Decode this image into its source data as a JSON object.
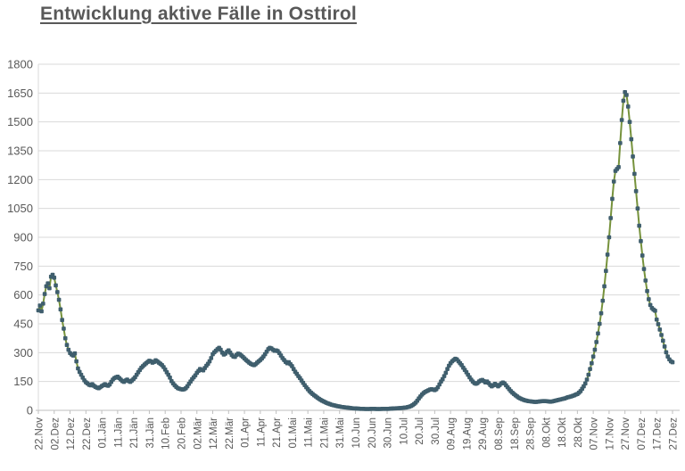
{
  "page": {
    "background": "#ffffff"
  },
  "title": {
    "text": "Entwicklung aktive Fälle in Osttirol",
    "color": "#595959"
  },
  "axes": {
    "label_color": "#595959",
    "grid_color": "#d9d9d9",
    "axis_line_color": "#bfbfbf"
  },
  "chart_data": {
    "type": "line",
    "title": "Entwicklung aktive Fälle in Osttirol",
    "xlabel": "",
    "ylabel": "",
    "ylim": [
      0,
      1800
    ],
    "y_tick_step": 150,
    "y_tick_labels": [
      "0",
      "150",
      "300",
      "450",
      "600",
      "750",
      "900",
      "1050",
      "1200",
      "1350",
      "1500",
      "1650",
      "1800"
    ],
    "grid": "horizontal",
    "legend_position": "none",
    "line_color": "#76923c",
    "marker_color": "#3f5e6d",
    "marker_shape": "square",
    "x_tick_interval_days": 10,
    "x_tick_labels": [
      "22.Nov",
      "02.Dez",
      "12.Dez",
      "22.Dez",
      "01.Jän",
      "11.Jän",
      "21.Jän",
      "31.Jän",
      "10.Feb",
      "20.Feb",
      "02.Mär",
      "12.Mär",
      "22.Mär",
      "01.Apr",
      "11.Apr",
      "21.Apr",
      "01.Mai",
      "11.Mai",
      "21.Mai",
      "31.Mai",
      "10.Jun",
      "20.Jun",
      "30.Jun",
      "10.Jul",
      "20.Jul",
      "30.Jul",
      "09.Aug",
      "19.Aug",
      "29.Aug",
      "08.Sep",
      "18.Sep",
      "28.Sep",
      "08.Okt",
      "18.Okt",
      "28.Okt",
      "07.Nov",
      "17.Nov",
      "27.Nov",
      "07.Dez",
      "17.Dez",
      "27.Dez"
    ],
    "values": [
      520,
      545,
      515,
      555,
      605,
      645,
      660,
      635,
      695,
      705,
      690,
      650,
      615,
      575,
      525,
      470,
      425,
      375,
      340,
      315,
      298,
      290,
      285,
      296,
      255,
      218,
      200,
      185,
      170,
      156,
      146,
      140,
      133,
      130,
      136,
      128,
      122,
      118,
      115,
      120,
      126,
      131,
      136,
      130,
      128,
      135,
      148,
      160,
      168,
      172,
      175,
      168,
      160,
      152,
      148,
      155,
      160,
      152,
      148,
      155,
      163,
      172,
      185,
      198,
      210,
      222,
      230,
      238,
      245,
      252,
      258,
      255,
      248,
      252,
      260,
      255,
      248,
      242,
      235,
      225,
      212,
      198,
      185,
      170,
      152,
      140,
      130,
      122,
      115,
      112,
      110,
      108,
      110,
      115,
      125,
      138,
      150,
      162,
      172,
      182,
      195,
      205,
      215,
      210,
      208,
      220,
      232,
      242,
      255,
      272,
      292,
      302,
      310,
      318,
      325,
      315,
      300,
      290,
      295,
      305,
      312,
      300,
      288,
      280,
      278,
      288,
      295,
      292,
      285,
      278,
      270,
      262,
      255,
      248,
      242,
      238,
      235,
      240,
      248,
      255,
      262,
      270,
      280,
      292,
      305,
      318,
      325,
      322,
      315,
      310,
      312,
      308,
      298,
      285,
      272,
      262,
      252,
      245,
      250,
      240,
      230,
      215,
      201,
      190,
      178,
      168,
      155,
      143,
      131,
      120,
      110,
      100,
      92,
      85,
      78,
      72,
      66,
      60,
      55,
      50,
      46,
      42,
      38,
      35,
      32,
      29,
      27,
      25,
      23,
      21,
      20,
      18,
      17,
      16,
      15,
      14,
      13,
      12,
      11,
      10,
      10,
      9,
      9,
      8,
      8,
      8,
      7,
      7,
      7,
      7,
      8,
      8,
      8,
      7,
      7,
      7,
      7,
      8,
      8,
      8,
      8,
      8,
      9,
      9,
      10,
      10,
      11,
      11,
      12,
      12,
      13,
      14,
      15,
      17,
      19,
      22,
      27,
      33,
      40,
      50,
      62,
      72,
      82,
      90,
      96,
      100,
      104,
      108,
      110,
      108,
      105,
      110,
      120,
      135,
      150,
      162,
      178,
      195,
      215,
      232,
      245,
      255,
      262,
      268,
      265,
      255,
      245,
      235,
      222,
      210,
      198,
      185,
      172,
      160,
      150,
      142,
      138,
      142,
      150,
      155,
      158,
      152,
      145,
      150,
      142,
      132,
      125,
      130,
      138,
      132,
      125,
      132,
      140,
      145,
      140,
      130,
      120,
      110,
      100,
      92,
      85,
      78,
      72,
      66,
      62,
      58,
      55,
      52,
      50,
      48,
      47,
      46,
      45,
      44,
      44,
      45,
      46,
      47,
      48,
      48,
      48,
      47,
      46,
      45,
      46,
      48,
      50,
      52,
      54,
      56,
      58,
      60,
      62,
      65,
      68,
      70,
      72,
      75,
      78,
      82,
      85,
      92,
      100,
      112,
      125,
      140,
      160,
      185,
      215,
      245,
      280,
      315,
      355,
      400,
      450,
      505,
      570,
      645,
      725,
      810,
      900,
      1000,
      1100,
      1190,
      1245,
      1255,
      1265,
      1390,
      1510,
      1610,
      1655,
      1640,
      1580,
      1500,
      1410,
      1320,
      1230,
      1140,
      1050,
      960,
      880,
      805,
      735,
      675,
      620,
      578,
      548,
      532,
      524,
      518,
      472,
      448,
      420,
      392,
      362,
      332,
      302,
      280,
      265,
      255,
      250
    ]
  }
}
